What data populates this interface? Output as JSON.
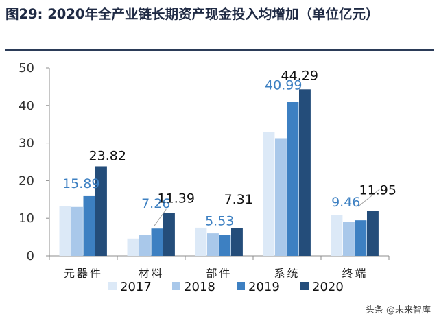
{
  "title": "图29: 2020年全产业链长期资产现金投入均增加（单位亿元）",
  "watermark": "头条 @未来智库",
  "chart_data": {
    "type": "bar",
    "title": "",
    "xlabel": "",
    "ylabel": "",
    "ylim": [
      0,
      50
    ],
    "yticks": [
      0,
      10,
      20,
      30,
      40,
      50
    ],
    "categories": [
      "元器件",
      "材料",
      "部件",
      "系统",
      "终端"
    ],
    "series": [
      {
        "name": "2017",
        "color": "#dce9f7",
        "values": [
          13.2,
          4.6,
          7.5,
          32.9,
          10.9
        ]
      },
      {
        "name": "2018",
        "color": "#a9c8ea",
        "values": [
          13.0,
          5.5,
          6.0,
          31.3,
          9.0
        ]
      },
      {
        "name": "2019",
        "color": "#3d80c2",
        "values": [
          15.89,
          7.26,
          5.53,
          40.99,
          9.46
        ]
      },
      {
        "name": "2020",
        "color": "#244d7a",
        "values": [
          23.82,
          11.39,
          7.31,
          44.29,
          11.95
        ]
      }
    ],
    "data_labels": [
      {
        "series": 2,
        "category": 0,
        "text": "15.89",
        "style": "blue"
      },
      {
        "series": 3,
        "category": 0,
        "text": "23.82",
        "style": "dark"
      },
      {
        "series": 2,
        "category": 1,
        "text": "7.26",
        "style": "blue"
      },
      {
        "series": 3,
        "category": 1,
        "text": "11.39",
        "style": "dark"
      },
      {
        "series": 2,
        "category": 2,
        "text": "5.53",
        "style": "blue"
      },
      {
        "series": 3,
        "category": 2,
        "text": "7.31",
        "style": "dark"
      },
      {
        "series": 2,
        "category": 3,
        "text": "40.99",
        "style": "blue"
      },
      {
        "series": 3,
        "category": 3,
        "text": "44.29",
        "style": "dark"
      },
      {
        "series": 2,
        "category": 4,
        "text": "9.46",
        "style": "blue"
      },
      {
        "series": 3,
        "category": 4,
        "text": "11.95",
        "style": "dark"
      }
    ],
    "legend": "bottom",
    "grid": false
  }
}
